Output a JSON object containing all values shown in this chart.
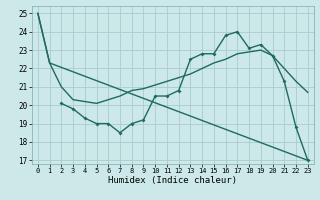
{
  "line1_x": [
    0,
    1,
    23
  ],
  "line1_y": [
    25,
    22.3,
    17.0
  ],
  "line2_x": [
    2,
    3,
    4,
    5,
    6,
    7,
    8,
    9,
    10,
    11,
    12,
    13,
    14,
    15,
    16,
    17,
    18,
    19,
    20,
    21,
    22,
    23
  ],
  "line2_y": [
    20.1,
    19.8,
    19.3,
    19.0,
    19.0,
    18.5,
    19.0,
    19.2,
    20.5,
    20.5,
    20.8,
    22.5,
    22.8,
    22.8,
    23.8,
    24.0,
    23.1,
    23.3,
    22.7,
    21.3,
    18.8,
    17.0
  ],
  "line3_x": [
    0,
    1,
    2,
    3,
    4,
    5,
    6,
    7,
    8,
    9,
    10,
    11,
    12,
    13,
    14,
    15,
    16,
    17,
    18,
    19,
    20,
    21,
    22,
    23
  ],
  "line3_y": [
    25.0,
    22.3,
    21.0,
    20.3,
    20.2,
    20.1,
    20.3,
    20.5,
    20.8,
    20.9,
    21.1,
    21.3,
    21.5,
    21.7,
    22.0,
    22.3,
    22.5,
    22.8,
    22.9,
    23.0,
    22.7,
    22.0,
    21.3,
    20.7
  ],
  "background_color": "#cce8e8",
  "grid_color": "#aacccc",
  "line_color": "#1e6b5e",
  "xlabel": "Humidex (Indice chaleur)",
  "xlim": [
    -0.5,
    23.5
  ],
  "ylim": [
    16.8,
    25.4
  ],
  "yticks": [
    17,
    18,
    19,
    20,
    21,
    22,
    23,
    24,
    25
  ],
  "xticks": [
    0,
    1,
    2,
    3,
    4,
    5,
    6,
    7,
    8,
    9,
    10,
    11,
    12,
    13,
    14,
    15,
    16,
    17,
    18,
    19,
    20,
    21,
    22,
    23
  ]
}
